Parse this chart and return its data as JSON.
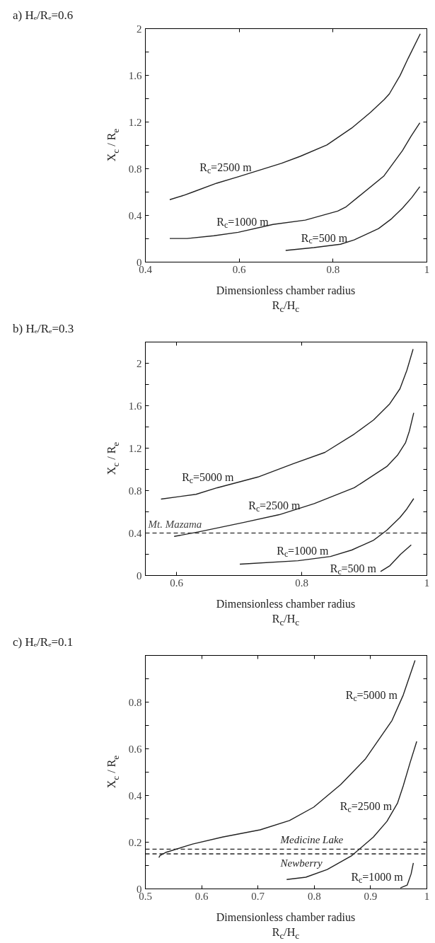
{
  "chart_data": [
    {
      "type": "line",
      "title": "a) Hₑ/Rₑ=0.6",
      "xlabel": "Dimensionless chamber radius\nR$_{c}$/H$_{c}$",
      "ylabel": "X$_{c}$ / R$_{e}$",
      "xlim": [
        0.4,
        1
      ],
      "xticks": [
        0.4,
        0.6,
        0.8,
        1
      ],
      "ylim": [
        0,
        2
      ],
      "legend": false,
      "yticks": [
        0,
        {
          "value": 0.2,
          "label": null
        },
        0.4,
        {
          "value": 0.6,
          "label": null
        },
        0.8,
        {
          "value": 1.0,
          "label": null
        },
        1.2,
        {
          "value": 1.4,
          "label": null
        },
        1.6,
        {
          "value": 1.8,
          "label": null
        },
        2
      ],
      "grid": false,
      "line_style": "solid",
      "series": [
        {
          "name": "R$_{c}$=2500 m",
          "color": "#222222",
          "x": [
            0.452,
            0.481,
            0.501,
            0.552,
            0.598,
            0.69,
            0.73,
            0.787,
            0.84,
            0.88,
            0.909,
            0.92,
            0.943,
            0.96,
            0.986
          ],
          "values": [
            0.535,
            0.571,
            0.6,
            0.676,
            0.731,
            0.846,
            0.906,
            1.004,
            1.149,
            1.283,
            1.392,
            1.441,
            1.599,
            1.745,
            1.956
          ]
        },
        {
          "name": "R$_{c}$=1000 m",
          "color": "#222222",
          "x": [
            0.452,
            0.489,
            0.546,
            0.598,
            0.672,
            0.741,
            0.81,
            0.828,
            0.856,
            0.908,
            0.948,
            0.966,
            0.985
          ],
          "values": [
            0.202,
            0.202,
            0.226,
            0.255,
            0.323,
            0.36,
            0.437,
            0.474,
            0.566,
            0.736,
            0.955,
            1.077,
            1.193
          ]
        },
        {
          "name": "R$_{c}$=500 m",
          "color": "#222222",
          "x": [
            0.699,
            0.759,
            0.816,
            0.845,
            0.897,
            0.925,
            0.948,
            0.968,
            0.985
          ],
          "values": [
            0.1,
            0.124,
            0.153,
            0.19,
            0.287,
            0.372,
            0.462,
            0.554,
            0.646
          ]
        }
      ]
    },
    {
      "type": "line",
      "title": "b) Hₑ/Rₑ=0.3",
      "xlabel": "Dimensionless chamber radius\nR$_{c}$/H$_{c}$",
      "ylabel": "X$_{c}$ / R$_{e}$",
      "xlim": [
        0.55,
        1
      ],
      "xticks": [
        0.6,
        0.8,
        1
      ],
      "ylim": [
        0,
        2.2
      ],
      "legend": false,
      "yticks": [
        0,
        {
          "value": 0.2,
          "label": null
        },
        0.4,
        {
          "value": 0.6,
          "label": null
        },
        0.8,
        {
          "value": 1.0,
          "label": null
        },
        1.2,
        {
          "value": 1.4,
          "label": null
        },
        1.6,
        {
          "value": 1.8,
          "label": null
        },
        2
      ],
      "grid": false,
      "line_style": "solid",
      "ref_lines": [
        {
          "axis": "y",
          "value": 0.4,
          "label": "Mt. Mazama",
          "color": "#444444",
          "line_style": "dashed"
        }
      ],
      "series": [
        {
          "name": "R$_{c}$=5000 m",
          "color": "#222222",
          "x": [
            0.575,
            0.631,
            0.665,
            0.73,
            0.786,
            0.837,
            0.884,
            0.915,
            0.94,
            0.957,
            0.968,
            0.978
          ],
          "values": [
            0.72,
            0.765,
            0.827,
            0.928,
            1.053,
            1.16,
            1.333,
            1.467,
            1.613,
            1.76,
            1.933,
            2.133
          ]
        },
        {
          "name": "R$_{c}$=2500 m",
          "color": "#222222",
          "x": [
            0.596,
            0.635,
            0.708,
            0.764,
            0.82,
            0.884,
            0.936,
            0.953,
            0.966,
            0.972,
            0.979
          ],
          "values": [
            0.368,
            0.411,
            0.501,
            0.573,
            0.677,
            0.827,
            1.027,
            1.133,
            1.253,
            1.36,
            1.533
          ]
        },
        {
          "name": "R$_{c}$=1000 m",
          "color": "#222222",
          "x": [
            0.701,
            0.794,
            0.846,
            0.88,
            0.915,
            0.936,
            0.957,
            0.968,
            0.979
          ],
          "values": [
            0.107,
            0.139,
            0.179,
            0.24,
            0.333,
            0.427,
            0.547,
            0.627,
            0.725
          ]
        },
        {
          "name": "R$_{c}$=500 m",
          "color": "#222222",
          "x": [
            0.926,
            0.941,
            0.958,
            0.975
          ],
          "values": [
            0.037,
            0.093,
            0.2,
            0.288
          ]
        }
      ]
    },
    {
      "type": "line",
      "title": "c) Hₑ/Rₑ=0.1",
      "xlabel": "Dimensionless chamber radius\nR$_{c}$/H$_{c}$",
      "ylabel": "X$_{c}$ / R$_{e}$",
      "xlim": [
        0.5,
        1
      ],
      "xticks": [
        0.5,
        0.6,
        0.7,
        0.8,
        0.9,
        1
      ],
      "ylim": [
        0,
        1
      ],
      "legend": false,
      "yticks": [
        0,
        {
          "value": 0.1,
          "label": null
        },
        0.2,
        {
          "value": 0.3,
          "label": null
        },
        0.4,
        {
          "value": 0.5,
          "label": null
        },
        0.6,
        {
          "value": 0.7,
          "label": null
        },
        0.8,
        {
          "value": 0.9,
          "label": null
        }
      ],
      "grid": false,
      "line_style": "solid",
      "ref_lines": [
        {
          "axis": "y",
          "value": 0.17,
          "label": "Medicine Lake",
          "color": "#222222",
          "line_style": "dashed"
        },
        {
          "axis": "y",
          "value": 0.15,
          "label": "Newberry",
          "color": "#222222",
          "line_style": "dashed"
        }
      ],
      "series": [
        {
          "name": "R$_{c}$=5000 m",
          "color": "#222222",
          "x": [
            0.524,
            0.526,
            0.536,
            0.584,
            0.637,
            0.704,
            0.756,
            0.799,
            0.847,
            0.891,
            0.938,
            0.958,
            0.979
          ],
          "values": [
            0.134,
            0.143,
            0.156,
            0.192,
            0.222,
            0.253,
            0.293,
            0.35,
            0.447,
            0.557,
            0.721,
            0.83,
            0.979
          ]
        },
        {
          "name": "R$_{c}$=2500 m",
          "color": "#222222",
          "x": [
            0.751,
            0.785,
            0.823,
            0.867,
            0.905,
            0.929,
            0.948,
            0.958,
            0.97,
            0.982
          ],
          "values": [
            0.04,
            0.05,
            0.083,
            0.143,
            0.222,
            0.289,
            0.368,
            0.441,
            0.539,
            0.632
          ]
        },
        {
          "name": "R$_{c}$=1000 m",
          "color": "#222222",
          "x": [
            0.953,
            0.965,
            0.972,
            0.976
          ],
          "values": [
            0.004,
            0.016,
            0.064,
            0.111
          ]
        }
      ]
    }
  ]
}
